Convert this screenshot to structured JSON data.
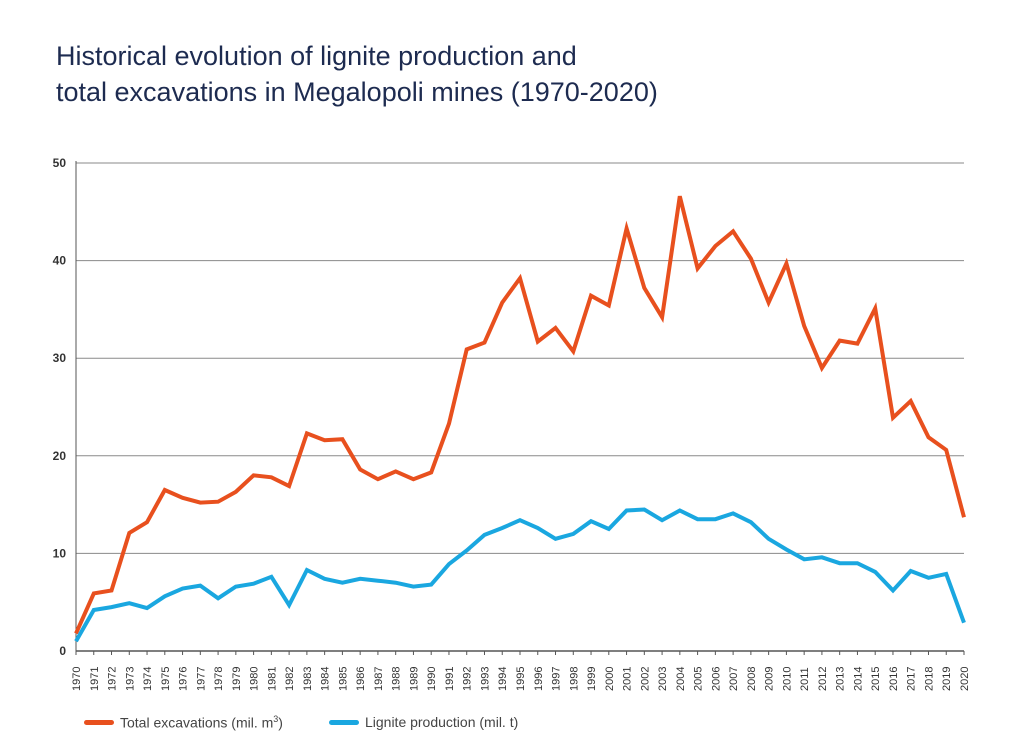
{
  "chart_data": {
    "type": "line",
    "title_lines": [
      "Historical evolution of lignite production and",
      "total excavations in Megalopoli mines (1970-2020)"
    ],
    "x": [
      "1970",
      "1971",
      "1972",
      "1973",
      "1974",
      "1975",
      "1976",
      "1977",
      "1978",
      "1979",
      "1980",
      "1981",
      "1982",
      "1983",
      "1984",
      "1985",
      "1986",
      "1987",
      "1988",
      "1989",
      "1990",
      "1991",
      "1992",
      "1993",
      "1994",
      "1995",
      "1996",
      "1997",
      "1998",
      "1999",
      "2000",
      "2001",
      "2002",
      "2003",
      "2004",
      "2005",
      "2006",
      "2007",
      "2008",
      "2009",
      "2010",
      "2011",
      "2012",
      "2013",
      "2014",
      "2015",
      "2016",
      "2017",
      "2018",
      "2019",
      "2020"
    ],
    "y_ticks": [
      "0",
      "10",
      "20",
      "30",
      "40",
      "50"
    ],
    "ylim": [
      0,
      50
    ],
    "grid": "horizontal",
    "legend_position": "bottom-left",
    "series": [
      {
        "name": "Total excavations (mil. m",
        "name_sup": "3",
        "name_suffix": ")",
        "color": "#e8501e",
        "values": [
          1.8,
          5.9,
          6.2,
          12.1,
          13.2,
          16.5,
          15.7,
          15.2,
          15.3,
          16.3,
          18.0,
          17.8,
          16.9,
          22.3,
          21.6,
          21.7,
          18.6,
          17.6,
          18.4,
          17.6,
          18.3,
          23.3,
          30.9,
          31.6,
          35.7,
          38.2,
          31.7,
          33.1,
          30.7,
          36.4,
          35.4,
          43.3,
          37.2,
          34.2,
          46.6,
          39.2,
          41.5,
          43.0,
          40.2,
          35.7,
          39.7,
          33.3,
          29.0,
          31.8,
          31.5,
          35.1,
          23.9,
          25.6,
          21.9,
          20.6,
          13.7
        ]
      },
      {
        "name": "Lignite production (mil. t)",
        "color": "#1aa7e0",
        "values": [
          1.0,
          4.2,
          4.5,
          4.9,
          4.4,
          5.6,
          6.4,
          6.7,
          5.4,
          6.6,
          6.9,
          7.6,
          4.7,
          8.3,
          7.4,
          7.0,
          7.4,
          7.2,
          7.0,
          6.6,
          6.8,
          8.9,
          10.3,
          11.9,
          12.6,
          13.4,
          12.6,
          11.5,
          12.0,
          13.3,
          12.5,
          14.4,
          14.5,
          13.4,
          14.4,
          13.5,
          13.5,
          14.1,
          13.2,
          11.5,
          10.4,
          9.4,
          9.6,
          9.0,
          9.0,
          8.1,
          6.2,
          8.2,
          7.5,
          7.9,
          2.9
        ]
      }
    ]
  }
}
